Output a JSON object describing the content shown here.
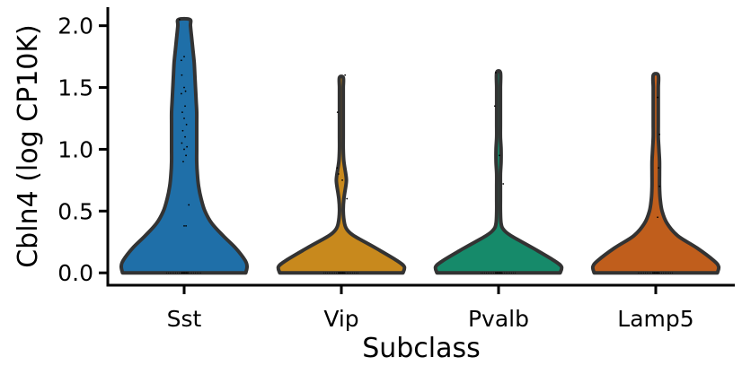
{
  "chart_data": {
    "type": "violin",
    "xlabel": "Subclass",
    "ylabel": "Cbln4 (log CP10K)",
    "ylim": [
      -0.1,
      2.15
    ],
    "yticks": [
      0.0,
      0.5,
      1.0,
      1.5,
      2.0
    ],
    "ytick_labels": [
      "0.0",
      "0.5",
      "1.0",
      "1.5",
      "2.0"
    ],
    "grid": false,
    "legend": "none",
    "categories": [
      "Sst",
      "Vip",
      "Pvalb",
      "Lamp5"
    ],
    "series": [
      {
        "category": "Sst",
        "color": "#1f6fa8",
        "max": 2.05,
        "density": [
          [
            0.0,
            0.98
          ],
          [
            0.05,
            1.0
          ],
          [
            0.1,
            0.97
          ],
          [
            0.2,
            0.82
          ],
          [
            0.3,
            0.62
          ],
          [
            0.4,
            0.44
          ],
          [
            0.5,
            0.33
          ],
          [
            0.6,
            0.27
          ],
          [
            0.7,
            0.23
          ],
          [
            0.8,
            0.21
          ],
          [
            0.9,
            0.2
          ],
          [
            1.0,
            0.2
          ],
          [
            1.1,
            0.2
          ],
          [
            1.2,
            0.2
          ],
          [
            1.3,
            0.2
          ],
          [
            1.4,
            0.19
          ],
          [
            1.5,
            0.18
          ],
          [
            1.6,
            0.17
          ],
          [
            1.7,
            0.16
          ],
          [
            1.8,
            0.14
          ],
          [
            1.9,
            0.12
          ],
          [
            2.0,
            0.1
          ],
          [
            2.05,
            0.09
          ]
        ],
        "points": [
          [
            0.0,
            0.0
          ],
          [
            0.0,
            -0.02
          ],
          [
            0.0,
            0.02
          ],
          [
            0.0,
            0.05
          ],
          [
            0.0,
            -0.05
          ],
          [
            0.0,
            0.08
          ],
          [
            0.38,
            0.0
          ],
          [
            0.38,
            0.04
          ],
          [
            0.55,
            0.1
          ],
          [
            0.9,
            -0.02
          ],
          [
            0.95,
            0.04
          ],
          [
            1.0,
            0.0
          ],
          [
            1.02,
            0.06
          ],
          [
            1.05,
            -0.05
          ],
          [
            1.1,
            0.02
          ],
          [
            1.15,
            -0.03
          ],
          [
            1.2,
            0.05
          ],
          [
            1.25,
            0.0
          ],
          [
            1.3,
            -0.04
          ],
          [
            1.35,
            0.02
          ],
          [
            1.45,
            -0.06
          ],
          [
            1.47,
            0.03
          ],
          [
            1.5,
            0.0
          ],
          [
            1.6,
            -0.05
          ],
          [
            1.72,
            -0.06
          ],
          [
            1.75,
            0.0
          ],
          [
            2.05,
            -0.1
          ]
        ]
      },
      {
        "category": "Vip",
        "color": "#c8891d",
        "max": 1.58,
        "density": [
          [
            0.0,
            0.98
          ],
          [
            0.05,
            1.0
          ],
          [
            0.1,
            0.88
          ],
          [
            0.2,
            0.55
          ],
          [
            0.3,
            0.2
          ],
          [
            0.35,
            0.09
          ],
          [
            0.4,
            0.05
          ],
          [
            0.5,
            0.03
          ],
          [
            0.6,
            0.04
          ],
          [
            0.7,
            0.07
          ],
          [
            0.75,
            0.08
          ],
          [
            0.8,
            0.07
          ],
          [
            0.9,
            0.04
          ],
          [
            1.0,
            0.03
          ],
          [
            1.1,
            0.03
          ],
          [
            1.2,
            0.03
          ],
          [
            1.3,
            0.03
          ],
          [
            1.4,
            0.03
          ],
          [
            1.5,
            0.03
          ],
          [
            1.58,
            0.03
          ]
        ],
        "points": [
          [
            0.0,
            0.0
          ],
          [
            0.0,
            -0.03
          ],
          [
            0.0,
            0.03
          ],
          [
            0.0,
            0.06
          ],
          [
            0.0,
            -0.06
          ],
          [
            0.6,
            0.12
          ],
          [
            0.75,
            0.02
          ],
          [
            0.8,
            -0.06
          ],
          [
            0.85,
            -0.09
          ],
          [
            1.3,
            -0.08
          ],
          [
            1.6,
            0.08
          ]
        ]
      },
      {
        "category": "Pvalb",
        "color": "#168a6a",
        "max": 1.62,
        "density": [
          [
            0.0,
            0.98
          ],
          [
            0.05,
            1.0
          ],
          [
            0.1,
            0.88
          ],
          [
            0.2,
            0.55
          ],
          [
            0.3,
            0.2
          ],
          [
            0.35,
            0.08
          ],
          [
            0.4,
            0.04
          ],
          [
            0.5,
            0.03
          ],
          [
            0.6,
            0.03
          ],
          [
            0.7,
            0.03
          ],
          [
            0.8,
            0.03
          ],
          [
            0.9,
            0.04
          ],
          [
            1.0,
            0.04
          ],
          [
            1.1,
            0.03
          ],
          [
            1.2,
            0.03
          ],
          [
            1.3,
            0.03
          ],
          [
            1.4,
            0.03
          ],
          [
            1.5,
            0.03
          ],
          [
            1.62,
            0.03
          ]
        ],
        "points": [
          [
            0.0,
            0.0
          ],
          [
            0.0,
            -0.03
          ],
          [
            0.0,
            0.03
          ],
          [
            0.0,
            0.06
          ],
          [
            0.0,
            -0.06
          ],
          [
            0.72,
            0.1
          ],
          [
            0.95,
            0.02
          ],
          [
            1.35,
            -0.08
          ],
          [
            1.62,
            -0.06
          ]
        ]
      },
      {
        "category": "Lamp5",
        "color": "#c05e1c",
        "max": 1.6,
        "density": [
          [
            0.0,
            0.98
          ],
          [
            0.05,
            1.0
          ],
          [
            0.1,
            0.92
          ],
          [
            0.2,
            0.66
          ],
          [
            0.3,
            0.35
          ],
          [
            0.4,
            0.18
          ],
          [
            0.5,
            0.1
          ],
          [
            0.6,
            0.07
          ],
          [
            0.7,
            0.06
          ],
          [
            0.8,
            0.06
          ],
          [
            0.9,
            0.06
          ],
          [
            1.0,
            0.05
          ],
          [
            1.1,
            0.04
          ],
          [
            1.2,
            0.04
          ],
          [
            1.3,
            0.04
          ],
          [
            1.4,
            0.04
          ],
          [
            1.5,
            0.04
          ],
          [
            1.6,
            0.04
          ]
        ],
        "points": [
          [
            0.0,
            0.0
          ],
          [
            0.0,
            -0.03
          ],
          [
            0.0,
            0.03
          ],
          [
            0.0,
            0.06
          ],
          [
            0.0,
            -0.06
          ],
          [
            0.45,
            0.04
          ],
          [
            0.7,
            0.08
          ],
          [
            0.85,
            0.06
          ],
          [
            1.12,
            0.08
          ],
          [
            1.42,
            0.04
          ]
        ]
      }
    ]
  }
}
